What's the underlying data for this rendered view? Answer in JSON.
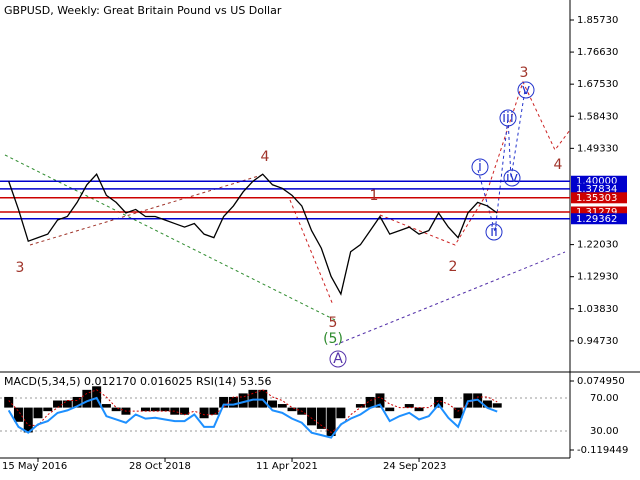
{
  "chart_data": [
    {
      "type": "line",
      "title": "GBPUSD, Weekly:  Great Britain Pound vs US Dollar",
      "categories": [
        null,
        null,
        null,
        "15 May 2016",
        null,
        null,
        null,
        null,
        null,
        null,
        null,
        null,
        null,
        null,
        null,
        null,
        "28 Oct 2018",
        null,
        null,
        null,
        null,
        null,
        null,
        null,
        null,
        null,
        null,
        null,
        null,
        "11 Apr 2021",
        null,
        null,
        null,
        null,
        null,
        null,
        null,
        null,
        null,
        null,
        null,
        null,
        "24 Sep 2023",
        null,
        null,
        null,
        null,
        null,
        null,
        null,
        null
      ],
      "values": [
        1.4,
        1.32,
        1.23,
        1.24,
        1.25,
        1.29,
        1.3,
        1.34,
        1.39,
        1.42,
        1.36,
        1.34,
        1.31,
        1.32,
        1.3,
        1.3,
        1.29,
        1.28,
        1.27,
        1.28,
        1.25,
        1.24,
        1.3,
        1.33,
        1.37,
        1.4,
        1.42,
        1.39,
        1.38,
        1.36,
        1.33,
        1.26,
        1.21,
        1.13,
        1.08,
        1.2,
        1.22,
        1.26,
        1.3,
        1.25,
        1.26,
        1.27,
        1.25,
        1.26,
        1.31,
        1.27,
        1.24,
        1.31,
        1.34,
        1.33,
        1.31
      ],
      "color": "#000000",
      "ylim": [
        0.859,
        1.914
      ],
      "yticks": [
        {
          "value": 1.8573,
          "label": "1.85730"
        },
        {
          "value": 1.7663,
          "label": "1.76630"
        },
        {
          "value": 1.6753,
          "label": "1.67530"
        },
        {
          "value": 1.5843,
          "label": "1.58430"
        },
        {
          "value": 1.4933,
          "label": "1.49330"
        },
        {
          "value": 1.2203,
          "label": "1.22030"
        },
        {
          "value": 1.1293,
          "label": "1.12930"
        },
        {
          "value": 1.0383,
          "label": "1.03830"
        },
        {
          "value": 0.9473,
          "label": "0.94730"
        }
      ],
      "levels": [
        {
          "value": 1.4,
          "label": "1.40000",
          "color": "#0000cc"
        },
        {
          "value": 1.37834,
          "label": "1.37834",
          "color": "#0000cc"
        },
        {
          "value": 1.35303,
          "label": "1.35303",
          "color": "#cc0000"
        },
        {
          "value": 1.31279,
          "label": "1.31279",
          "color": "#cc0000"
        },
        {
          "value": 1.29362,
          "label": "1.29362",
          "color": "#0000cc"
        }
      ],
      "annotations": [
        "3",
        "4",
        "1",
        "2",
        "5",
        "(5)",
        "A",
        "i",
        "ii",
        "iii",
        "iv",
        "v",
        "3",
        "4"
      ]
    },
    {
      "type": "bar",
      "title": "MACD(5,34,5) 0.012170 0.016025 RSI(14) 53.56",
      "ylim": [
        -0.142,
        0.1003
      ],
      "yticks": [
        {
          "value": 0.07495,
          "label": "0.074950"
        },
        -0.119449
      ],
      "y2lim": [
        -2.7,
        101.5
      ],
      "y2ticks": [
        {
          "value": 70,
          "label": "70.00"
        },
        {
          "value": 30,
          "label": "30.00"
        }
      ],
      "series": [
        {
          "color": "#000000",
          "values": [
            0.03,
            -0.04,
            -0.07,
            -0.03,
            -0.01,
            0.02,
            0.02,
            0.03,
            0.05,
            0.06,
            0.01,
            -0.01,
            -0.02,
            0.0,
            -0.01,
            -0.01,
            -0.01,
            -0.02,
            -0.02,
            0.0,
            -0.03,
            -0.02,
            0.03,
            0.03,
            0.04,
            0.05,
            0.05,
            0.02,
            0.01,
            -0.01,
            -0.02,
            -0.05,
            -0.06,
            -0.08,
            -0.03,
            0.0,
            0.01,
            0.03,
            0.04,
            -0.01,
            0.0,
            0.01,
            -0.01,
            0.0,
            0.03,
            0.0,
            -0.03,
            0.04,
            0.04,
            0.02,
            0.01217
          ]
        },
        {
          "color": "#cc0000",
          "values": [
            0.02,
            -0.01,
            -0.05,
            -0.05,
            -0.02,
            0.0,
            0.02,
            0.02,
            0.04,
            0.05,
            0.03,
            0.0,
            -0.01,
            -0.01,
            -0.01,
            -0.01,
            -0.01,
            -0.01,
            -0.02,
            -0.01,
            -0.02,
            -0.02,
            0.0,
            0.03,
            0.03,
            0.04,
            0.05,
            0.03,
            0.02,
            0.0,
            -0.01,
            -0.03,
            -0.05,
            -0.07,
            -0.05,
            -0.02,
            0.0,
            0.02,
            0.03,
            0.01,
            0.0,
            0.0,
            0.0,
            0.0,
            0.02,
            0.01,
            -0.01,
            0.01,
            0.03,
            0.03,
            0.016025
          ]
        },
        {
          "color": "#1e90ff",
          "axis": "y2",
          "values": [
            55,
            35,
            28,
            38,
            42,
            52,
            55,
            60,
            66,
            70,
            48,
            44,
            40,
            50,
            45,
            46,
            44,
            42,
            42,
            50,
            35,
            35,
            62,
            62,
            65,
            68,
            68,
            55,
            52,
            45,
            40,
            28,
            25,
            22,
            38,
            45,
            50,
            58,
            62,
            42,
            48,
            52,
            44,
            48,
            62,
            46,
            35,
            66,
            68,
            58,
            53.56
          ]
        }
      ]
    }
  ]
}
